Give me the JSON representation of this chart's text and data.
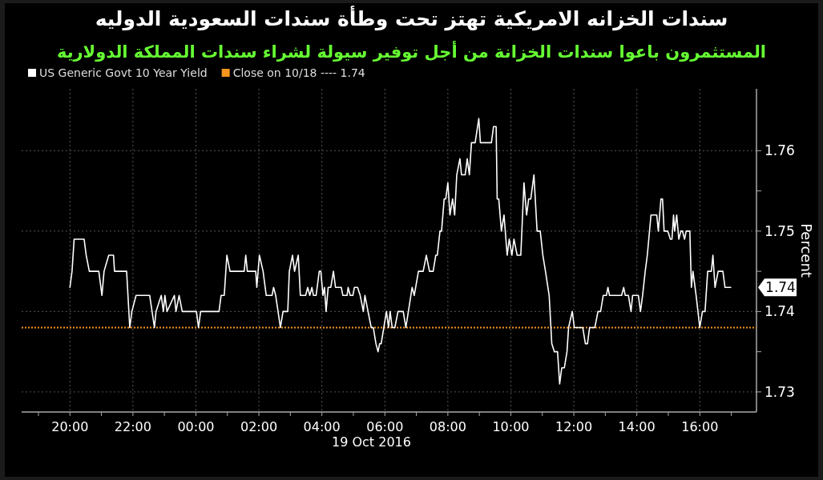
{
  "chart_data": {
    "type": "line",
    "title": "سندات الخزانه الامريكية تهتز تحت وطأة سندات السعودية الدوليه",
    "subtitle": "المستثمرون باعوا سندات الخزانة من أجل توفير سيولة لشراء سندات المملكة الدولارية",
    "xlabel": "19 Oct 2016",
    "ylabel": "Percent",
    "series": [
      {
        "name": "US Generic Govt 10 Year Yield",
        "color": "#ffffff",
        "x": [
          "2016-10-18T20:00",
          "2016-10-18T20:04",
          "2016-10-18T20:08",
          "2016-10-18T20:27",
          "2016-10-18T20:31",
          "2016-10-18T20:37",
          "2016-10-18T20:55",
          "2016-10-18T21:01",
          "2016-10-18T21:05",
          "2016-10-18T21:14",
          "2016-10-18T21:23",
          "2016-10-18T21:25",
          "2016-10-18T21:48",
          "2016-10-18T21:54",
          "2016-10-18T21:58",
          "2016-10-18T22:06",
          "2016-10-18T22:32",
          "2016-10-18T22:41",
          "2016-10-18T22:44",
          "2016-10-18T22:54",
          "2016-10-18T22:58",
          "2016-10-18T23:01",
          "2016-10-18T23:05",
          "2016-10-18T23:19",
          "2016-10-18T23:22",
          "2016-10-18T23:28",
          "2016-10-18T23:34",
          "2016-10-19T00:01",
          "2016-10-19T00:05",
          "2016-10-19T00:09",
          "2016-10-19T00:44",
          "2016-10-19T00:48",
          "2016-10-19T00:54",
          "2016-10-19T00:59",
          "2016-10-19T01:05",
          "2016-10-19T01:32",
          "2016-10-19T01:35",
          "2016-10-19T01:38",
          "2016-10-19T01:54",
          "2016-10-19T01:56",
          "2016-10-19T02:01",
          "2016-10-19T02:08",
          "2016-10-19T02:14",
          "2016-10-19T02:25",
          "2016-10-19T02:28",
          "2016-10-19T02:32",
          "2016-10-19T02:41",
          "2016-10-19T02:46",
          "2016-10-19T02:55",
          "2016-10-19T02:58",
          "2016-10-19T03:04",
          "2016-10-19T03:08",
          "2016-10-19T03:15",
          "2016-10-19T03:19",
          "2016-10-19T03:29",
          "2016-10-19T03:33",
          "2016-10-19T03:37",
          "2016-10-19T03:41",
          "2016-10-19T03:44",
          "2016-10-19T03:49",
          "2016-10-19T03:55",
          "2016-10-19T03:58",
          "2016-10-19T04:02",
          "2016-10-19T04:05",
          "2016-10-19T04:08",
          "2016-10-19T04:12",
          "2016-10-19T04:17",
          "2016-10-19T04:22",
          "2016-10-19T04:26",
          "2016-10-19T04:37",
          "2016-10-19T04:40",
          "2016-10-19T04:48",
          "2016-10-19T04:50",
          "2016-10-19T04:54",
          "2016-10-19T04:59",
          "2016-10-19T05:02",
          "2016-10-19T05:08",
          "2016-10-19T05:13",
          "2016-10-19T05:19",
          "2016-10-19T05:22",
          "2016-10-19T05:34",
          "2016-10-19T05:38",
          "2016-10-19T05:43",
          "2016-10-19T05:47",
          "2016-10-19T05:50",
          "2016-10-19T05:53",
          "2016-10-19T05:58",
          "2016-10-19T06:03",
          "2016-10-19T06:07",
          "2016-10-19T06:10",
          "2016-10-19T06:14",
          "2016-10-19T06:19",
          "2016-10-19T06:25",
          "2016-10-19T06:35",
          "2016-10-19T06:40",
          "2016-10-19T06:52",
          "2016-10-19T06:56",
          "2016-10-19T07:04",
          "2016-10-19T07:13",
          "2016-10-19T07:19",
          "2016-10-19T07:25",
          "2016-10-19T07:32",
          "2016-10-19T07:37",
          "2016-10-19T07:40",
          "2016-10-19T07:45",
          "2016-10-19T07:48",
          "2016-10-19T07:53",
          "2016-10-19T07:56",
          "2016-10-19T08:00",
          "2016-10-19T08:04",
          "2016-10-19T08:09",
          "2016-10-19T08:13",
          "2016-10-19T08:17",
          "2016-10-19T08:23",
          "2016-10-19T08:26",
          "2016-10-19T08:33",
          "2016-10-19T08:37",
          "2016-10-19T08:41",
          "2016-10-19T08:45",
          "2016-10-19T08:52",
          "2016-10-19T08:59",
          "2016-10-19T09:02",
          "2016-10-19T09:23",
          "2016-10-19T09:27",
          "2016-10-19T09:32",
          "2016-10-19T09:34",
          "2016-10-19T09:37",
          "2016-10-19T09:42",
          "2016-10-19T09:47",
          "2016-10-19T09:53",
          "2016-10-19T09:57",
          "2016-10-19T10:02",
          "2016-10-19T10:06",
          "2016-10-19T10:12",
          "2016-10-19T10:19",
          "2016-10-19T10:25",
          "2016-10-19T10:30",
          "2016-10-19T10:34",
          "2016-10-19T10:38",
          "2016-10-19T10:44",
          "2016-10-19T10:50",
          "2016-10-19T10:56",
          "2016-10-19T11:01",
          "2016-10-19T11:06",
          "2016-10-19T11:13",
          "2016-10-19T11:18",
          "2016-10-19T11:23",
          "2016-10-19T11:29",
          "2016-10-19T11:33",
          "2016-10-19T11:37",
          "2016-10-19T11:42",
          "2016-10-19T11:47",
          "2016-10-19T11:50",
          "2016-10-19T11:57",
          "2016-10-19T12:01",
          "2016-10-19T12:17",
          "2016-10-19T12:22",
          "2016-10-19T12:26",
          "2016-10-19T12:30",
          "2016-10-19T12:40",
          "2016-10-19T12:46",
          "2016-10-19T12:51",
          "2016-10-19T12:56",
          "2016-10-19T13:02",
          "2016-10-19T13:05",
          "2016-10-19T13:08",
          "2016-10-19T13:31",
          "2016-10-19T13:35",
          "2016-10-19T13:38",
          "2016-10-19T13:44",
          "2016-10-19T13:49",
          "2016-10-19T13:52",
          "2016-10-19T14:03",
          "2016-10-19T14:07",
          "2016-10-19T14:11",
          "2016-10-19T14:16",
          "2016-10-19T14:20",
          "2016-10-19T14:27",
          "2016-10-19T14:38",
          "2016-10-19T14:41",
          "2016-10-19T14:46",
          "2016-10-19T14:49",
          "2016-10-19T14:52",
          "2016-10-19T14:59",
          "2016-10-19T15:04",
          "2016-10-19T15:07",
          "2016-10-19T15:10",
          "2016-10-19T15:12",
          "2016-10-19T15:16",
          "2016-10-19T15:20",
          "2016-10-19T15:24",
          "2016-10-19T15:27",
          "2016-10-19T15:31",
          "2016-10-19T15:34",
          "2016-10-19T15:41",
          "2016-10-19T15:44",
          "2016-10-19T15:47",
          "2016-10-19T15:53",
          "2016-10-19T16:00",
          "2016-10-19T16:05",
          "2016-10-19T16:10",
          "2016-10-19T16:15",
          "2016-10-19T16:22",
          "2016-10-19T16:25",
          "2016-10-19T16:29",
          "2016-10-19T16:35",
          "2016-10-19T16:44",
          "2016-10-19T16:48",
          "2016-10-19T16:59"
        ],
        "values": [
          1.743,
          1.745,
          1.749,
          1.749,
          1.747,
          1.745,
          1.745,
          1.742,
          1.745,
          1.747,
          1.747,
          1.745,
          1.745,
          1.738,
          1.74,
          1.742,
          1.742,
          1.738,
          1.74,
          1.742,
          1.74,
          1.742,
          1.74,
          1.742,
          1.74,
          1.742,
          1.74,
          1.74,
          1.738,
          1.74,
          1.74,
          1.742,
          1.742,
          1.747,
          1.745,
          1.745,
          1.747,
          1.745,
          1.745,
          1.743,
          1.747,
          1.745,
          1.742,
          1.742,
          1.743,
          1.742,
          1.738,
          1.74,
          1.74,
          1.745,
          1.747,
          1.745,
          1.747,
          1.742,
          1.742,
          1.743,
          1.742,
          1.743,
          1.742,
          1.742,
          1.745,
          1.745,
          1.742,
          1.743,
          1.74,
          1.743,
          1.743,
          1.745,
          1.743,
          1.743,
          1.742,
          1.742,
          1.743,
          1.742,
          1.742,
          1.743,
          1.743,
          1.742,
          1.74,
          1.742,
          1.738,
          1.738,
          1.736,
          1.735,
          1.736,
          1.736,
          1.738,
          1.74,
          1.738,
          1.74,
          1.738,
          1.738,
          1.74,
          1.74,
          1.738,
          1.743,
          1.742,
          1.745,
          1.745,
          1.747,
          1.745,
          1.745,
          1.747,
          1.747,
          1.75,
          1.75,
          1.754,
          1.754,
          1.756,
          1.752,
          1.754,
          1.752,
          1.757,
          1.759,
          1.757,
          1.757,
          1.759,
          1.757,
          1.761,
          1.761,
          1.764,
          1.761,
          1.761,
          1.763,
          1.763,
          1.754,
          1.754,
          1.75,
          1.752,
          1.747,
          1.749,
          1.747,
          1.749,
          1.747,
          1.747,
          1.756,
          1.752,
          1.754,
          1.754,
          1.757,
          1.75,
          1.75,
          1.747,
          1.745,
          1.742,
          1.736,
          1.735,
          1.735,
          1.731,
          1.733,
          1.733,
          1.735,
          1.738,
          1.74,
          1.738,
          1.738,
          1.736,
          1.736,
          1.738,
          1.738,
          1.74,
          1.74,
          1.742,
          1.742,
          1.743,
          1.742,
          1.742,
          1.743,
          1.742,
          1.742,
          1.74,
          1.742,
          1.742,
          1.74,
          1.742,
          1.745,
          1.747,
          1.752,
          1.752,
          1.75,
          1.754,
          1.754,
          1.75,
          1.75,
          1.749,
          1.749,
          1.752,
          1.75,
          1.752,
          1.749,
          1.75,
          1.75,
          1.749,
          1.75,
          1.75,
          1.743,
          1.745,
          1.742,
          1.738,
          1.74,
          1.74,
          1.745,
          1.745,
          1.747,
          1.743,
          1.745,
          1.745,
          1.743,
          1.743
        ]
      }
    ],
    "xlim": [
      "2016-10-18T18:28",
      "2016-10-19T17:48"
    ],
    "ylim": [
      1.7275,
      1.7677
    ],
    "xticks": [
      {
        "value": "2016-10-18T19:00",
        "label": null
      },
      {
        "value": "2016-10-18T20:00",
        "label": "20:00"
      },
      {
        "value": "2016-10-18T21:00",
        "label": null
      },
      {
        "value": "2016-10-18T22:00",
        "label": "22:00"
      },
      {
        "value": "2016-10-18T23:00",
        "label": null
      },
      {
        "value": "2016-10-19T00:00",
        "label": "00:00"
      },
      {
        "value": "2016-10-19T01:00",
        "label": null
      },
      {
        "value": "2016-10-19T02:00",
        "label": "02:00"
      },
      {
        "value": "2016-10-19T03:00",
        "label": null
      },
      {
        "value": "2016-10-19T04:00",
        "label": "04:00"
      },
      {
        "value": "2016-10-19T05:00",
        "label": null
      },
      {
        "value": "2016-10-19T06:00",
        "label": "06:00"
      },
      {
        "value": "2016-10-19T07:00",
        "label": null
      },
      {
        "value": "2016-10-19T08:00",
        "label": "08:00"
      },
      {
        "value": "2016-10-19T09:00",
        "label": null
      },
      {
        "value": "2016-10-19T10:00",
        "label": "10:00"
      },
      {
        "value": "2016-10-19T11:00",
        "label": null
      },
      {
        "value": "2016-10-19T12:00",
        "label": "12:00"
      },
      {
        "value": "2016-10-19T13:00",
        "label": null
      },
      {
        "value": "2016-10-19T14:00",
        "label": "14:00"
      },
      {
        "value": "2016-10-19T15:00",
        "label": null
      },
      {
        "value": "2016-10-19T16:00",
        "label": "16:00"
      },
      {
        "value": "2016-10-19T17:00",
        "label": null
      }
    ],
    "yticks": [
      1.73,
      {
        "value": 1.735,
        "label": null
      },
      1.74,
      {
        "value": 1.745,
        "label": null
      },
      1.75,
      {
        "value": 1.755,
        "label": null
      },
      1.76
    ],
    "ref_lines": [
      {
        "axis": "y",
        "value": 1.738,
        "label": "Close on 10/18 ---- 1.74",
        "color": "#f7941d",
        "line_style": "dotted"
      }
    ],
    "annotations": [
      "1.74"
    ],
    "grid": true,
    "legend": "top left"
  }
}
